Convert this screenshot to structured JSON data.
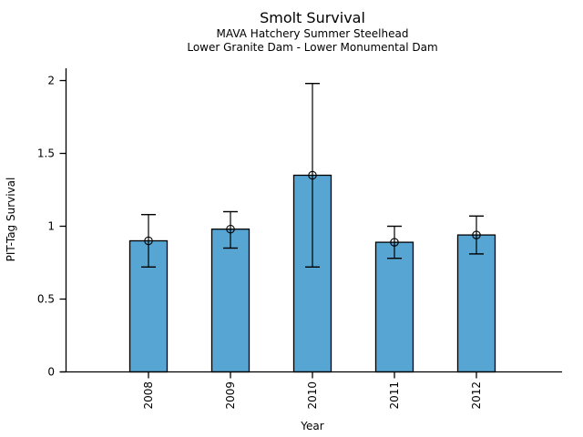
{
  "chart_data": {
    "type": "bar",
    "title": "Smolt Survival",
    "subtitle1": "MAVA Hatchery Summer Steelhead",
    "subtitle2": "Lower Granite Dam - Lower Monumental Dam",
    "xlabel": "Year",
    "ylabel": "PIT-Tag Survival",
    "categories": [
      "2008",
      "2009",
      "2010",
      "2011",
      "2012"
    ],
    "values": [
      0.9,
      0.98,
      1.35,
      0.89,
      0.94
    ],
    "error_low": [
      0.72,
      0.85,
      0.72,
      0.78,
      0.81
    ],
    "error_high": [
      1.08,
      1.1,
      1.98,
      1.0,
      1.07
    ],
    "ylim": [
      0,
      2
    ],
    "yticks": [
      "0",
      "0.5",
      "1",
      "1.5",
      "2"
    ],
    "grid": "off",
    "legend": "none",
    "bar_color": "#56A5D3",
    "bar_edge_color": "#000000",
    "errorbar_color": "#000000",
    "marker": "open-circle",
    "background": "#FFFFFF"
  }
}
